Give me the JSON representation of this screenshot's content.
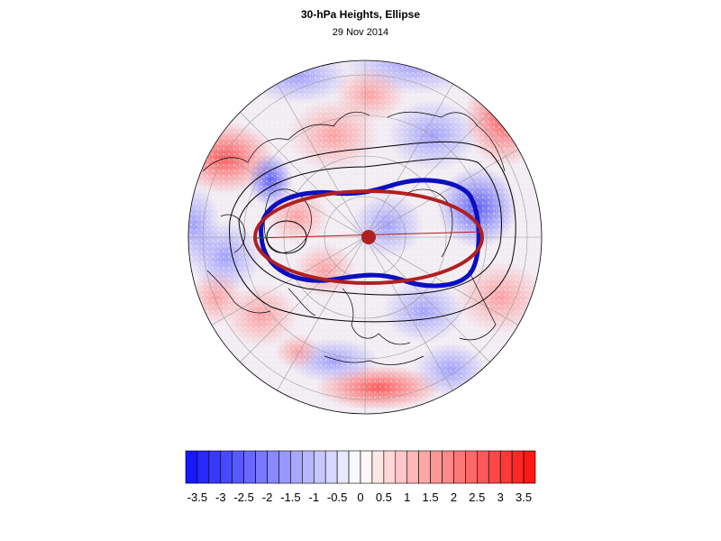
{
  "title": "30-hPa Heights, Ellipse",
  "date": "29 Nov 2014",
  "colorbar": {
    "min": -3.75,
    "max": 3.75,
    "step": 0.25,
    "tick_labels": [
      "-3.5",
      "-3",
      "-2.5",
      "-2",
      "-1.5",
      "-1",
      "-0.5",
      "0",
      "0.5",
      "1",
      "1.5",
      "2",
      "2.5",
      "3",
      "3.5"
    ],
    "negative_color": "#1010ff",
    "positive_color": "#ff1010",
    "neutral_color": "#ffffff"
  },
  "map": {
    "projection": "polar-stereographic",
    "hemisphere": "north",
    "background_field": "anomaly",
    "contour_color": "#000000",
    "coastline_color": "#000000",
    "gridline_color": "#888888"
  },
  "overlays": {
    "vortex_edge_color": "#0a10c0",
    "ellipse_color": "#b02020",
    "centroid_color": "#b02020"
  }
}
